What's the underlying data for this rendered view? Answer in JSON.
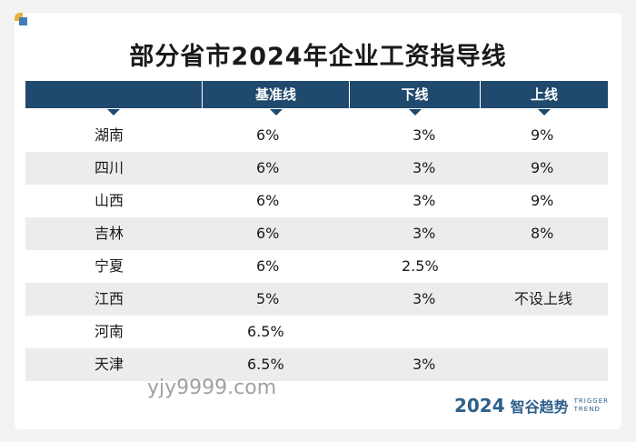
{
  "title": "部分省市2024年企业工资指导线",
  "columns": [
    "",
    "基准线",
    "下线",
    "上线"
  ],
  "rows": [
    {
      "province": "湖南",
      "base": "6%",
      "low": "3%",
      "high": "9%"
    },
    {
      "province": "四川",
      "base": "6%",
      "low": "3%",
      "high": "9%"
    },
    {
      "province": "山西",
      "base": "6%",
      "low": "3%",
      "high": "9%"
    },
    {
      "province": "吉林",
      "base": "6%",
      "low": "3%",
      "high": "8%"
    },
    {
      "province": "宁夏",
      "base": "6%",
      "low": "2.5%",
      "high": ""
    },
    {
      "province": "江西",
      "base": "5%",
      "low": "3%",
      "high": "不设上线"
    },
    {
      "province": "河南",
      "base": "6.5%",
      "low": "",
      "high": ""
    },
    {
      "province": "天津",
      "base": "6.5%",
      "low": "3%",
      "high": ""
    }
  ],
  "watermark": "yjy9999.com",
  "logo": {
    "year": "2024",
    "brand": "智谷趋势",
    "sub_line1": "TRIGGER",
    "sub_line2": "TREND"
  },
  "colors": {
    "header_bg": "#1f4a6e",
    "row_alt_bg": "#ececec",
    "logo": "#2d5f8a"
  }
}
